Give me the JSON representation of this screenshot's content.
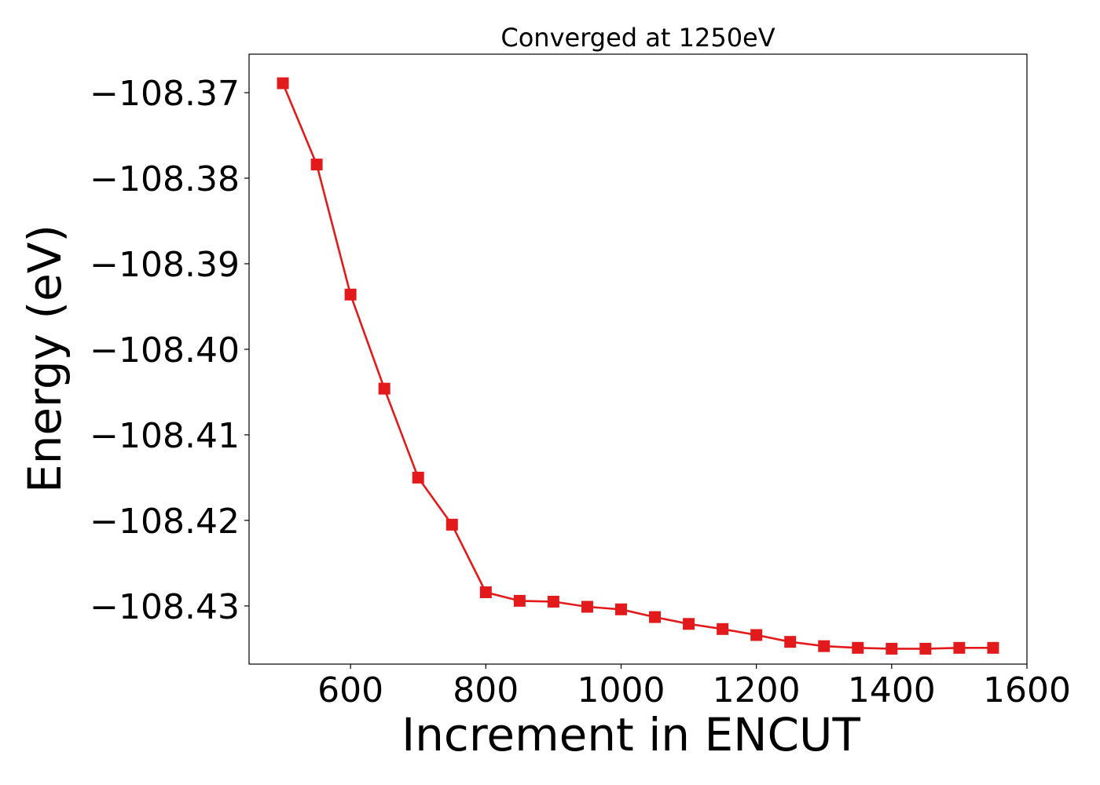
{
  "chart_data": {
    "type": "line",
    "title": "Converged at 1250eV",
    "xlabel": "Increment in ENCUT",
    "ylabel": "Energy (eV)",
    "xlim": [
      450,
      1600
    ],
    "ylim": [
      -108.4368,
      -108.3655
    ],
    "x_ticks": [
      600,
      800,
      1000,
      1200,
      1400,
      1600
    ],
    "x_tick_labels": [
      "600",
      "800",
      "1000",
      "1200",
      "1400",
      "1600"
    ],
    "y_ticks": [
      -108.37,
      -108.38,
      -108.39,
      -108.4,
      -108.41,
      -108.42,
      -108.43
    ],
    "y_tick_labels": [
      "−108.37",
      "−108.38",
      "−108.39",
      "−108.40",
      "−108.41",
      "−108.42",
      "−108.43"
    ],
    "grid": false,
    "series": [
      {
        "color": "#e31a1c",
        "marker": "square",
        "x": [
          500,
          550,
          600,
          650,
          700,
          750,
          800,
          850,
          900,
          950,
          1000,
          1050,
          1100,
          1150,
          1200,
          1250,
          1300,
          1350,
          1400,
          1450,
          1500,
          1550
        ],
        "y": [
          -108.3689,
          -108.3784,
          -108.3936,
          -108.4046,
          -108.415,
          -108.4205,
          -108.4284,
          -108.4294,
          -108.4295,
          -108.4301,
          -108.4304,
          -108.4313,
          -108.4321,
          -108.4327,
          -108.4334,
          -108.4342,
          -108.4347,
          -108.4349,
          -108.435,
          -108.435,
          -108.4349,
          -108.4349
        ]
      }
    ]
  }
}
